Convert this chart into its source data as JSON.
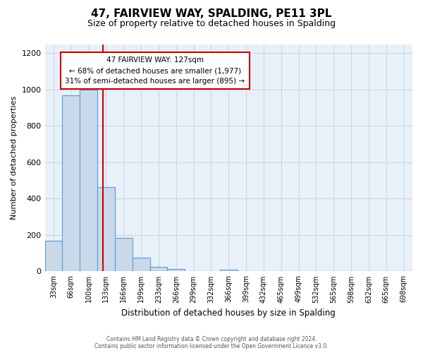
{
  "title": "47, FAIRVIEW WAY, SPALDING, PE11 3PL",
  "subtitle": "Size of property relative to detached houses in Spalding",
  "xlabel": "Distribution of detached houses by size in Spalding",
  "ylabel": "Number of detached properties",
  "bar_labels": [
    "33sqm",
    "66sqm",
    "100sqm",
    "133sqm",
    "166sqm",
    "199sqm",
    "233sqm",
    "266sqm",
    "299sqm",
    "332sqm",
    "366sqm",
    "399sqm",
    "432sqm",
    "465sqm",
    "499sqm",
    "532sqm",
    "565sqm",
    "598sqm",
    "632sqm",
    "665sqm",
    "698sqm"
  ],
  "bar_values": [
    170,
    970,
    1000,
    465,
    185,
    75,
    25,
    15,
    0,
    0,
    10,
    0,
    0,
    0,
    0,
    0,
    0,
    0,
    0,
    0,
    0
  ],
  "bar_color": "#c9d9ea",
  "bar_edge_color": "#5b9bd5",
  "property_line_label": "47 FAIRVIEW WAY: 127sqm",
  "annotation_line1": "← 68% of detached houses are smaller (1,977)",
  "annotation_line2": "31% of semi-detached houses are larger (895) →",
  "annotation_box_edge": "#cc0000",
  "annotation_box_face": "#ffffff",
  "vline_color": "#cc0000",
  "vline_x": 2.82,
  "ylim": [
    0,
    1250
  ],
  "yticks": [
    0,
    200,
    400,
    600,
    800,
    1000,
    1200
  ],
  "title_fontsize": 11,
  "subtitle_fontsize": 9,
  "bg_color": "#ffffff",
  "ax_bg_color": "#e8f0f8",
  "grid_color": "#c8d8e8",
  "bar_width": 1.0,
  "footer_line1": "Contains HM Land Registry data © Crown copyright and database right 2024.",
  "footer_line2": "Contains public sector information licensed under the Open Government Licence v3.0."
}
